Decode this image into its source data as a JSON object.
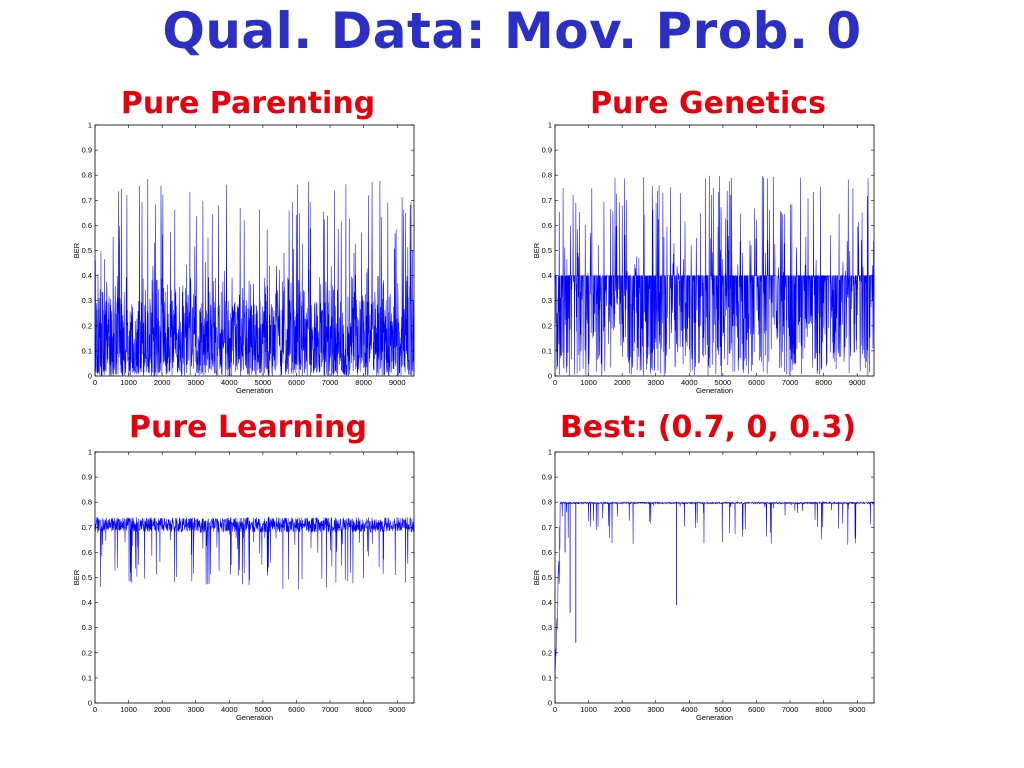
{
  "page": {
    "title": "Qual. Data: Mov. Prob. 0"
  },
  "chart_data": [
    {
      "id": "parenting",
      "type": "line",
      "title": "Pure Parenting",
      "xlabel": "Generation",
      "ylabel": "BER",
      "xlim": [
        0,
        9500
      ],
      "ylim": [
        0,
        1
      ],
      "xticks": [
        "0",
        "1000",
        "2000",
        "3000",
        "4000",
        "5000",
        "6000",
        "7000",
        "8000",
        "9000"
      ],
      "yticks": [
        "0",
        "0.1",
        "0.2",
        "0.3",
        "0.4",
        "0.5",
        "0.6",
        "0.7",
        "0.8",
        "0.9",
        "1"
      ],
      "color": "#0000ff",
      "series": [
        {
          "profile": {
            "base_low": 0.0,
            "base_high": 0.4,
            "dense_high": 0.3,
            "spike_max": 0.8,
            "spike_rate": 0.06
          },
          "x_range": [
            0,
            9500
          ]
        }
      ]
    },
    {
      "id": "genetics",
      "type": "line",
      "title": "Pure Genetics",
      "xlabel": "Generation",
      "ylabel": "BER",
      "xlim": [
        0,
        9500
      ],
      "ylim": [
        0,
        1
      ],
      "xticks": [
        "0",
        "1000",
        "2000",
        "3000",
        "4000",
        "5000",
        "6000",
        "7000",
        "8000",
        "9000"
      ],
      "yticks": [
        "0",
        "0.1",
        "0.2",
        "0.3",
        "0.4",
        "0.5",
        "0.6",
        "0.7",
        "0.8",
        "0.9",
        "1"
      ],
      "color": "#0000ff",
      "series": [
        {
          "profile": {
            "base_low": 0.0,
            "base_high": 0.4,
            "dense_high": 0.4,
            "spike_max": 0.8,
            "spike_rate": 0.08
          },
          "x_range": [
            0,
            9500
          ]
        }
      ]
    },
    {
      "id": "learning",
      "type": "line",
      "title": "Pure Learning",
      "xlabel": "Generation",
      "ylabel": "BER",
      "xlim": [
        0,
        9500
      ],
      "ylim": [
        0,
        1
      ],
      "xticks": [
        "0",
        "1000",
        "2000",
        "3000",
        "4000",
        "5000",
        "6000",
        "7000",
        "8000",
        "9000"
      ],
      "yticks": [
        "0",
        "0.1",
        "0.2",
        "0.3",
        "0.4",
        "0.5",
        "0.6",
        "0.7",
        "0.8",
        "0.9",
        "1"
      ],
      "color": "#0000ff",
      "series": [
        {
          "profile": {
            "band_low": 0.68,
            "band_high": 0.74,
            "dip_min": 0.45,
            "dip_rate": 0.05
          },
          "x_range": [
            0,
            9500
          ]
        }
      ]
    },
    {
      "id": "best",
      "type": "line",
      "title": "Best: (0.7, 0, 0.3)",
      "xlabel": "Generation",
      "ylabel": "BER",
      "xlim": [
        0,
        9500
      ],
      "ylim": [
        0,
        1
      ],
      "xticks": [
        "0",
        "1000",
        "2000",
        "3000",
        "4000",
        "5000",
        "6000",
        "7000",
        "8000",
        "9000"
      ],
      "yticks": [
        "0",
        "0.1",
        "0.2",
        "0.3",
        "0.4",
        "0.5",
        "0.6",
        "0.7",
        "0.8",
        "0.9",
        "1"
      ],
      "color": "#0000ff",
      "series": [
        {
          "profile": {
            "plateau": 0.8,
            "start": 0.1,
            "ramp_end": 150
          },
          "notable_dips": [
            {
              "x": 300,
              "y": 0.6
            },
            {
              "x": 450,
              "y": 0.36
            },
            {
              "x": 620,
              "y": 0.24
            },
            {
              "x": 3620,
              "y": 0.39
            }
          ],
          "x_range": [
            0,
            9500
          ]
        }
      ]
    }
  ]
}
